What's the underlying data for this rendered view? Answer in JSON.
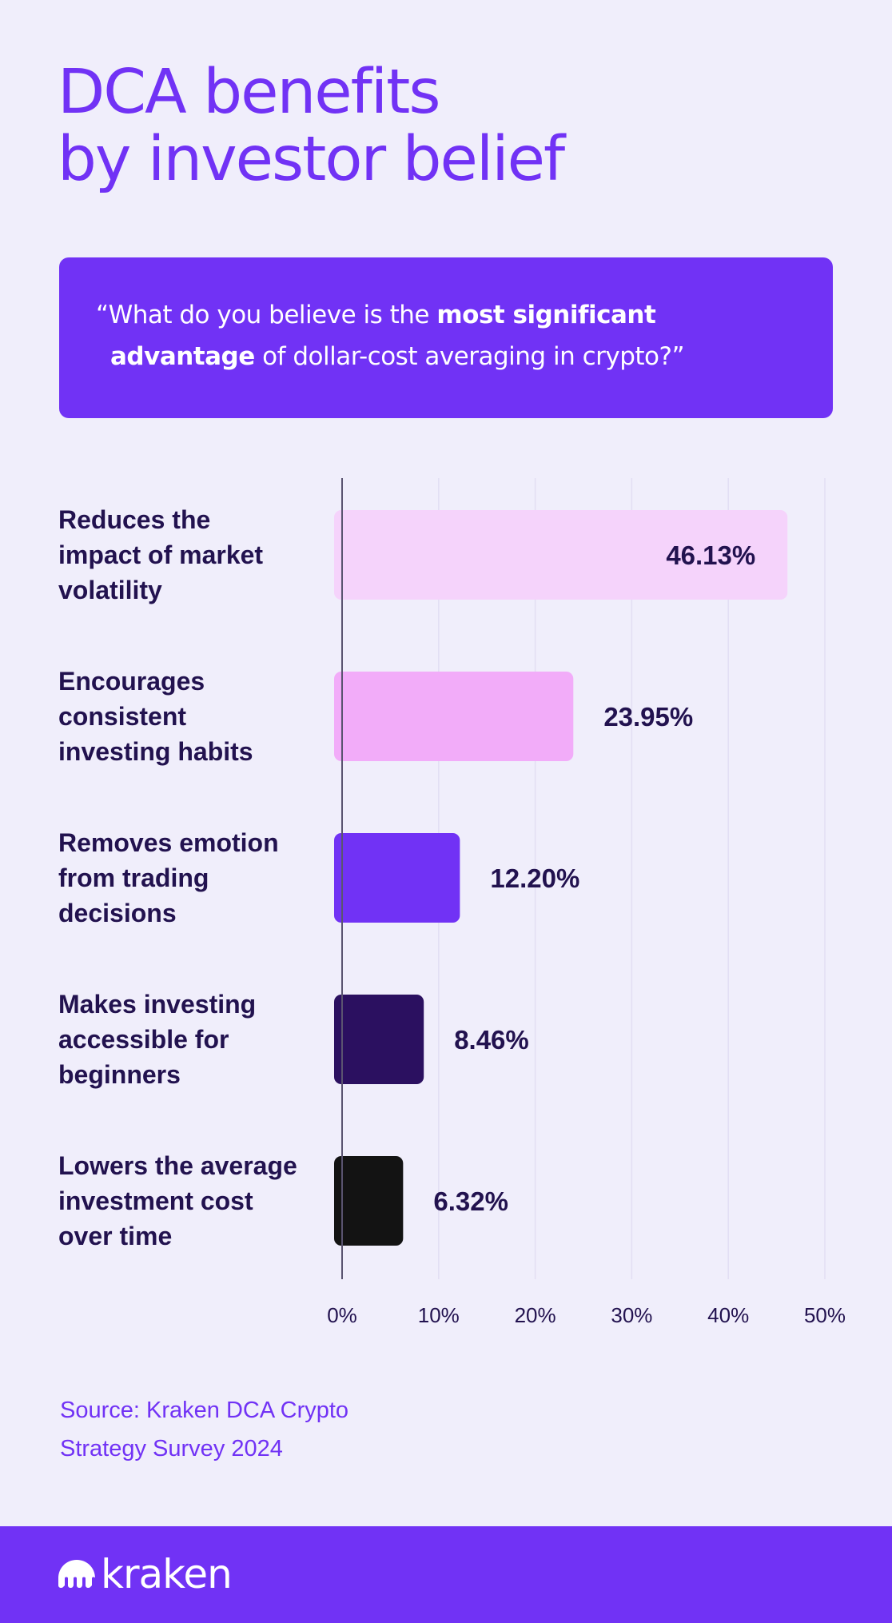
{
  "title_lines": [
    "DCA benefits",
    "by investor belief"
  ],
  "question": {
    "open_quote": "“",
    "part1": "What do you believe is the ",
    "bold1": "most significant",
    "bold2": "advantage",
    "part2": " of dollar-cost averaging in crypto?”"
  },
  "chart_data": {
    "type": "bar",
    "orientation": "horizontal",
    "categories": [
      [
        "Reduces the",
        "impact of market",
        "volatility"
      ],
      [
        "Encourages",
        "consistent",
        "investing habits"
      ],
      [
        "Removes emotion",
        "from trading",
        "decisions"
      ],
      [
        "Makes investing",
        "accessible for",
        "beginners"
      ],
      [
        "Lowers the average",
        "investment cost",
        "over time"
      ]
    ],
    "values": [
      46.13,
      23.95,
      12.2,
      8.46,
      6.32
    ],
    "value_labels": [
      "46.13%",
      "23.95%",
      "12.20%",
      "8.46%",
      "6.32%"
    ],
    "bar_colors": [
      "#f5d3fb",
      "#f2acf9",
      "#7132f5",
      "#2b1060",
      "#131313"
    ],
    "xlim": [
      0,
      50
    ],
    "xticks": [
      "0%",
      "10%",
      "20%",
      "30%",
      "40%",
      "50%"
    ],
    "grid": true
  },
  "source_lines": [
    "Source: Kraken DCA Crypto",
    "Strategy Survey 2024"
  ],
  "footer": {
    "logo_text": "kraken",
    "logo_icon": "kraken-logo-icon",
    "background": "#7132f5"
  }
}
